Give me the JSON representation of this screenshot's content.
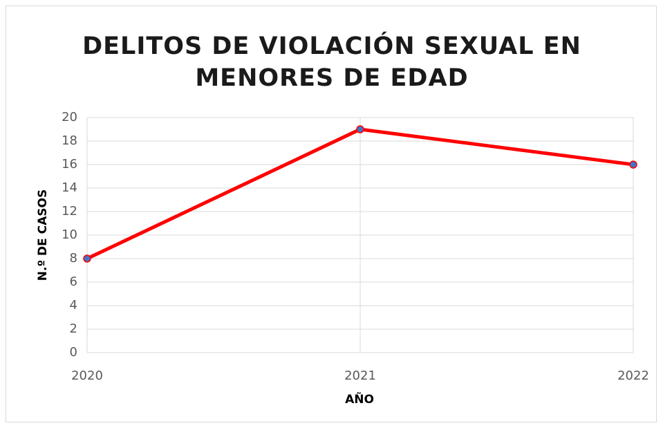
{
  "chart_data": {
    "type": "line",
    "title": "DELITOS DE VIOLACIÓN SEXUAL EN MENORES DE EDAD",
    "x_label": "AÑO",
    "y_label": "N.º DE CASOS",
    "categories": [
      "2020",
      "2021",
      "2022"
    ],
    "series": [
      {
        "name": "N.º DE CASOS",
        "color": "#ff0000",
        "marker_color": "#4472c4",
        "values": [
          8,
          19,
          16
        ]
      }
    ],
    "ylim": [
      0,
      20
    ],
    "yticks": [
      0,
      2,
      4,
      6,
      8,
      10,
      12,
      14,
      16,
      18,
      20
    ],
    "grid": true
  }
}
